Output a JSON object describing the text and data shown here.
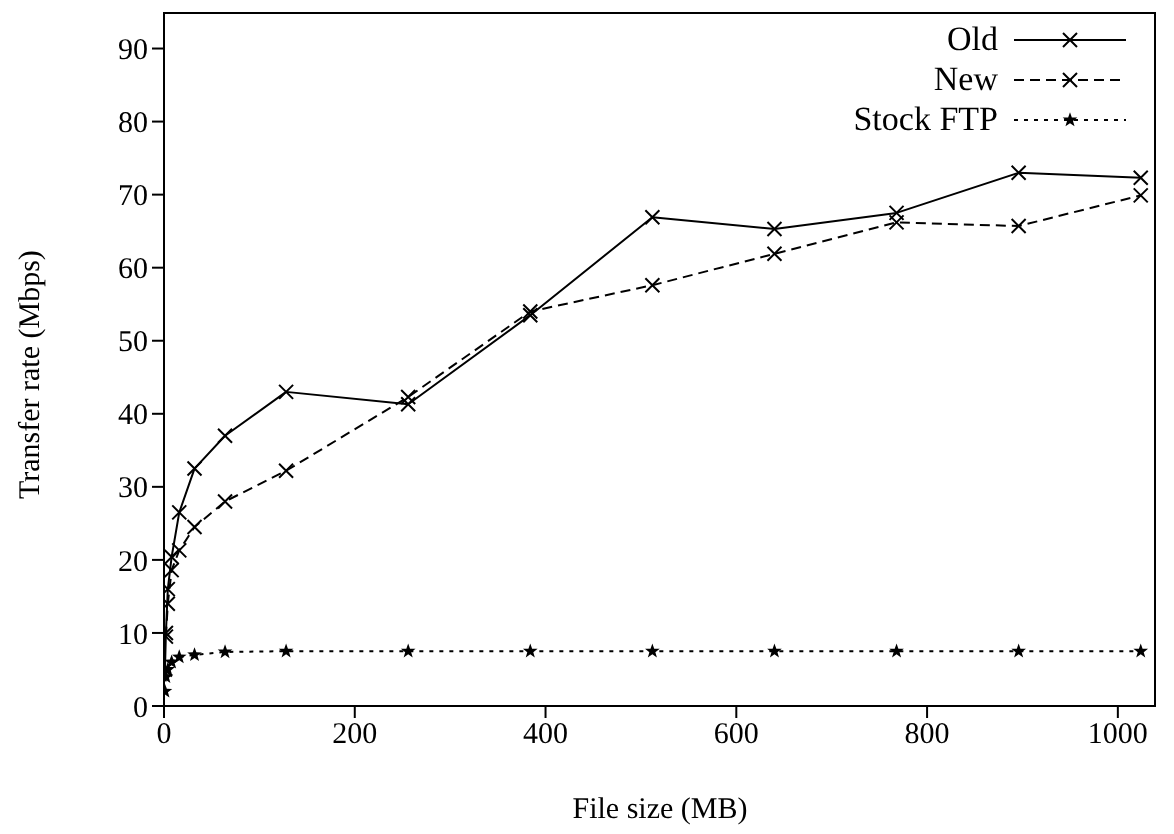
{
  "chart_data": {
    "type": "line",
    "xlabel": "File size (MB)",
    "ylabel": "Transfer rate (Mbps)",
    "x": [
      1,
      2,
      4,
      8,
      16,
      32,
      64,
      128,
      256,
      384,
      512,
      640,
      768,
      896,
      1024
    ],
    "series": [
      {
        "name": "Old",
        "color": "#000000",
        "line_style": "solid",
        "marker": "cross",
        "values": [
          5,
          10,
          16,
          20.4,
          26.5,
          32.5,
          37,
          43,
          41.3,
          53.5,
          66.9,
          65.3,
          67.5,
          73,
          72.3
        ]
      },
      {
        "name": "New",
        "color": "#000000",
        "line_style": "dashed",
        "marker": "cross",
        "values": [
          null,
          9.5,
          14,
          18.6,
          21.3,
          24.5,
          28,
          32.2,
          42.3,
          54,
          57.6,
          61.9,
          66.2,
          65.7,
          69.9
        ]
      },
      {
        "name": "Stock FTP",
        "color": "#000000",
        "line_style": "dotted",
        "marker": "star",
        "values": [
          2,
          4,
          5,
          6,
          6.7,
          7,
          7.4,
          7.5,
          7.5,
          7.5,
          7.5,
          7.5,
          7.5,
          7.5,
          7.5
        ]
      }
    ],
    "xlim": [
      0,
      1040
    ],
    "xticks": [
      0,
      200,
      400,
      600,
      800,
      1000
    ],
    "ylim": [
      0,
      95
    ],
    "yticks": [
      0,
      10,
      20,
      30,
      40,
      50,
      60,
      70,
      80,
      90
    ],
    "grid": false,
    "legend": "top right"
  }
}
